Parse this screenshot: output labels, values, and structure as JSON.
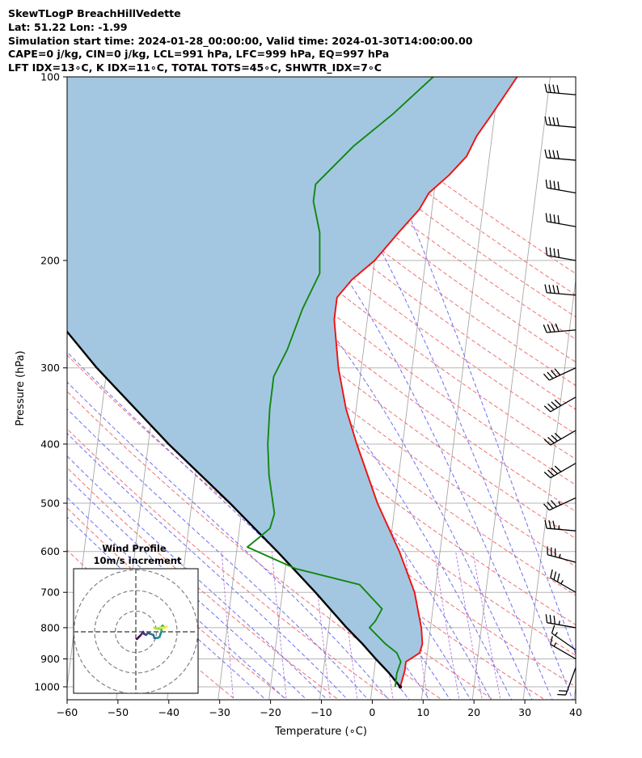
{
  "header": {
    "line1": "SkewTLogP BreachHillVedette",
    "line2": "Lat: 51.22   Lon: -1.99",
    "line3": "Simulation start time: 2024-01-28_00:00:00, Valid time: 2024-01-30T14:00:00.00",
    "line4": "CAPE=0 j/kg, CIN=0 j/kg, LCL=991 hPa, LFC=999 hPa, EQ=997 hPa",
    "line5": "LFT IDX=13∘C, K IDX=11∘C, TOTAL TOTS=45∘C, SHWTR_IDX=7∘C"
  },
  "chart_data": {
    "type": "skewt",
    "xlabel": "Temperature (∘C)",
    "ylabel": "Pressure (hPa)",
    "xlim": [
      -60,
      40
    ],
    "ylim_hpa": [
      1050,
      100
    ],
    "x_ticks": [
      -60,
      -50,
      -40,
      -30,
      -20,
      -10,
      0,
      10,
      20,
      30,
      40
    ],
    "x_tick_labels": [
      "−60",
      "−50",
      "−40",
      "−30",
      "−20",
      "−10",
      "0",
      "10",
      "20",
      "30",
      "40"
    ],
    "y_ticks": [
      1000,
      900,
      800,
      700,
      600,
      500,
      400,
      300,
      200,
      100
    ],
    "y_tick_labels": [
      "1000",
      "900",
      "800",
      "700",
      "600",
      "500",
      "400",
      "300",
      "200",
      "100"
    ],
    "grid": true,
    "colors": {
      "temperature": "#ee1111",
      "dewpoint": "#118811",
      "parcel": "#000000",
      "cape_fill": "#a2c6e0",
      "dry_adiabats": "#f07070",
      "moist_adiabats": "#6f6ff2",
      "mixing_ratio": "#9b4fcf",
      "isotherms": "#aaaaaa",
      "isobars": "#bbbbbb"
    },
    "temperature_profile": [
      {
        "p": 1000,
        "t": 5.5
      },
      {
        "p": 940,
        "t": 6.0
      },
      {
        "p": 910,
        "t": 6.0
      },
      {
        "p": 880,
        "t": 8.5
      },
      {
        "p": 850,
        "t": 8.8
      },
      {
        "p": 800,
        "t": 8.2
      },
      {
        "p": 700,
        "t": 6.0
      },
      {
        "p": 600,
        "t": 2.0
      },
      {
        "p": 500,
        "t": -3.5
      },
      {
        "p": 400,
        "t": -9.0
      },
      {
        "p": 350,
        "t": -12.0
      },
      {
        "p": 300,
        "t": -14.5
      },
      {
        "p": 250,
        "t": -16.5
      },
      {
        "p": 230,
        "t": -16.5
      },
      {
        "p": 215,
        "t": -14.0
      },
      {
        "p": 200,
        "t": -10.0
      },
      {
        "p": 180,
        "t": -6.0
      },
      {
        "p": 165,
        "t": -2.5
      },
      {
        "p": 155,
        "t": -1.0
      },
      {
        "p": 145,
        "t": 2.5
      },
      {
        "p": 135,
        "t": 5.5
      },
      {
        "p": 125,
        "t": 7.0
      },
      {
        "p": 115,
        "t": 9.5
      },
      {
        "p": 100,
        "t": 13.5
      }
    ],
    "dewpoint_profile": [
      {
        "p": 1000,
        "t": 4.5
      },
      {
        "p": 950,
        "t": 4.5
      },
      {
        "p": 910,
        "t": 5.0
      },
      {
        "p": 880,
        "t": 4.0
      },
      {
        "p": 850,
        "t": 1.5
      },
      {
        "p": 800,
        "t": -2.0
      },
      {
        "p": 780,
        "t": -1.0
      },
      {
        "p": 745,
        "t": 0.0
      },
      {
        "p": 680,
        "t": -5.0
      },
      {
        "p": 640,
        "t": -18.0
      },
      {
        "p": 590,
        "t": -28.0
      },
      {
        "p": 570,
        "t": -26.0
      },
      {
        "p": 550,
        "t": -24.0
      },
      {
        "p": 520,
        "t": -23.5
      },
      {
        "p": 450,
        "t": -25.5
      },
      {
        "p": 400,
        "t": -26.5
      },
      {
        "p": 350,
        "t": -27.0
      },
      {
        "p": 310,
        "t": -27.0
      },
      {
        "p": 280,
        "t": -25.0
      },
      {
        "p": 240,
        "t": -23.0
      },
      {
        "p": 210,
        "t": -20.5
      },
      {
        "p": 180,
        "t": -21.5
      },
      {
        "p": 160,
        "t": -23.5
      },
      {
        "p": 150,
        "t": -23.5
      },
      {
        "p": 130,
        "t": -17.0
      },
      {
        "p": 115,
        "t": -10.0
      },
      {
        "p": 100,
        "t": -3.0
      }
    ],
    "parcel_profile": [
      {
        "p": 1000,
        "t": 5.5
      },
      {
        "p": 950,
        "t": 3.0
      },
      {
        "p": 900,
        "t": 0.0
      },
      {
        "p": 850,
        "t": -3.0
      },
      {
        "p": 800,
        "t": -6.5
      },
      {
        "p": 700,
        "t": -13.5
      },
      {
        "p": 600,
        "t": -22.0
      },
      {
        "p": 500,
        "t": -32.5
      },
      {
        "p": 400,
        "t": -46.0
      },
      {
        "p": 300,
        "t": -62.0
      },
      {
        "p": 250,
        "t": -71.0
      },
      {
        "p": 200,
        "t": -81.0
      },
      {
        "p": 150,
        "t": -93.0
      },
      {
        "p": 120,
        "t": -102.0
      },
      {
        "p": 100,
        "t": -109.5
      }
    ],
    "wind_barbs": [
      {
        "p": 1000,
        "speed_kt": 30,
        "dir": 135
      },
      {
        "p": 960,
        "speed_kt": 25,
        "dir": 140
      },
      {
        "p": 930,
        "speed_kt": 20,
        "dir": 200
      },
      {
        "p": 900,
        "speed_kt": 15,
        "dir": 300
      },
      {
        "p": 870,
        "speed_kt": 15,
        "dir": 305
      },
      {
        "p": 800,
        "speed_kt": 35,
        "dir": 280
      },
      {
        "p": 700,
        "speed_kt": 35,
        "dir": 300
      },
      {
        "p": 625,
        "speed_kt": 35,
        "dir": 285
      },
      {
        "p": 555,
        "speed_kt": 35,
        "dir": 275
      },
      {
        "p": 490,
        "speed_kt": 35,
        "dir": 245
      },
      {
        "p": 430,
        "speed_kt": 40,
        "dir": 240
      },
      {
        "p": 380,
        "speed_kt": 40,
        "dir": 240
      },
      {
        "p": 335,
        "speed_kt": 40,
        "dir": 240
      },
      {
        "p": 300,
        "speed_kt": 40,
        "dir": 245
      },
      {
        "p": 260,
        "speed_kt": 40,
        "dir": 265
      },
      {
        "p": 228,
        "speed_kt": 40,
        "dir": 275
      },
      {
        "p": 200,
        "speed_kt": 40,
        "dir": 280
      },
      {
        "p": 176,
        "speed_kt": 40,
        "dir": 280
      },
      {
        "p": 155,
        "speed_kt": 40,
        "dir": 280
      },
      {
        "p": 137,
        "speed_kt": 40,
        "dir": 275
      },
      {
        "p": 121,
        "speed_kt": 40,
        "dir": 275
      },
      {
        "p": 107,
        "speed_kt": 40,
        "dir": 275
      }
    ],
    "hodograph": {
      "title": "Wind Profile",
      "subtitle": "10m/s increment",
      "ring_increment_ms": 10,
      "rings": [
        10,
        20,
        30
      ],
      "points_ms": [
        {
          "u": 0.5,
          "v": -3.5
        },
        {
          "u": 1.5,
          "v": -2.5
        },
        {
          "u": 2.5,
          "v": -1.5
        },
        {
          "u": 3.5,
          "v": 0.0
        },
        {
          "u": 4.0,
          "v": -1.0
        },
        {
          "u": 5.0,
          "v": -1.5
        },
        {
          "u": 6.0,
          "v": -0.5
        },
        {
          "u": 7.0,
          "v": -1.0
        },
        {
          "u": 8.5,
          "v": -1.5
        },
        {
          "u": 9.0,
          "v": -3.0
        },
        {
          "u": 10.5,
          "v": -3.0
        },
        {
          "u": 11.5,
          "v": -2.5
        },
        {
          "u": 12.0,
          "v": -1.0
        },
        {
          "u": 12.5,
          "v": 0.5
        },
        {
          "u": 12.0,
          "v": 2.0
        },
        {
          "u": 13.0,
          "v": 3.0
        },
        {
          "u": 13.5,
          "v": 2.5
        },
        {
          "u": 12.5,
          "v": 1.5
        },
        {
          "u": 10.5,
          "v": 1.5
        },
        {
          "u": 9.0,
          "v": 2.0
        },
        {
          "u": 10.0,
          "v": 1.5
        },
        {
          "u": 12.0,
          "v": 2.0
        },
        {
          "u": 14.0,
          "v": 2.0
        },
        {
          "u": 15.0,
          "v": 2.5
        }
      ]
    }
  }
}
